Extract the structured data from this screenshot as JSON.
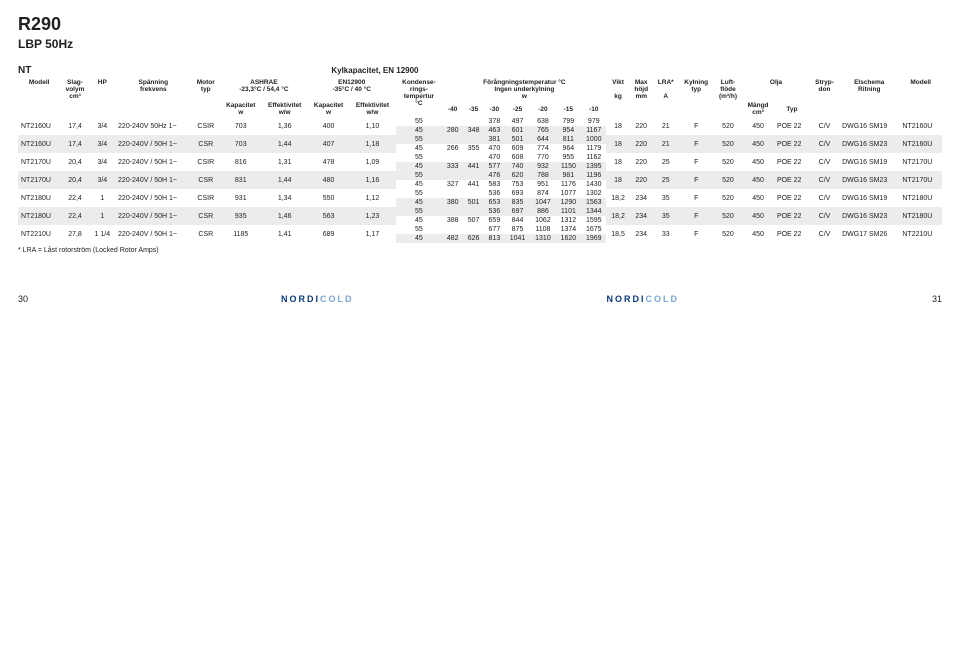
{
  "page": {
    "title_main": "R290",
    "title_sub": "LBP 50Hz",
    "series_label": "NT",
    "kyl_label": "Kylkapacitet, EN 12900",
    "footnote": "* LRA = Låst rotorström (Locked Rotor Amps)",
    "page_left": "30",
    "page_right": "31",
    "logo_text": "NORDICOLD"
  },
  "headers": {
    "modell": "Modell",
    "slag": "Slag-\nvolym\ncm³",
    "hp": "HP",
    "span": "Spänning\nfrekvens",
    "motor": "Motor\ntyp",
    "ashrae": "ASHRAE\n-23,3°C / 54,4 °C",
    "kap": "Kapacitet\nw",
    "eff": "Effektivitet\nw/w",
    "en12900": "EN12900\n-35°C / 40 °C",
    "kondens": "Kondenserings-\ntempertur\n°C",
    "forang": "Förångningstemperatur °C\nIngen underkylning\nw",
    "evap_temps": [
      "-40",
      "-35",
      "-30",
      "-25",
      "-20",
      "-15",
      "-10"
    ],
    "vikt": "Vikt\nkg",
    "maxhojd": "Max\nhöjd\nmm",
    "lra": "LRA*\nA",
    "kylning": "Kylning\ntyp",
    "luft": "Luft-\nflöde\n(m³/h)",
    "olja": "Olja",
    "mangd": "Mängd\ncm³",
    "typ": "Typ",
    "stryp": "Stryp-\ndon",
    "elschema": "Elschema\nRitning",
    "modell_r": "Modell"
  },
  "rows": [
    {
      "model": "NT2160U",
      "slag": "17,4",
      "hp": "3/4",
      "span": "220-240V 50Hz 1~",
      "motor": "CSIR",
      "ash_k": "703",
      "ash_e": "1,36",
      "en_k": "400",
      "en_e": "1,10",
      "lines": [
        {
          "cond": "55",
          "v": [
            "",
            "",
            "",
            "378",
            "497",
            "638",
            "799",
            "979"
          ]
        },
        {
          "cond": "45",
          "v": [
            "",
            "280",
            "348",
            "463",
            "601",
            "765",
            "954",
            "1167"
          ]
        }
      ],
      "vikt": "18",
      "hojd": "220",
      "lra": "21",
      "kyl": "F",
      "luft": "520",
      "mangd": "450",
      "typ": "POE 22",
      "stryp": "C/V",
      "schema": "DWG16  SM19",
      "model_r": "NT2160U"
    },
    {
      "model": "NT2160U",
      "slag": "17,4",
      "hp": "3/4",
      "span": "220-240V / 50H 1~",
      "motor": "CSR",
      "ash_k": "703",
      "ash_e": "1,44",
      "en_k": "407",
      "en_e": "1,18",
      "lines": [
        {
          "cond": "55",
          "v": [
            "",
            "",
            "",
            "381",
            "501",
            "644",
            "811",
            "1000"
          ]
        },
        {
          "cond": "45",
          "v": [
            "",
            "266",
            "355",
            "470",
            "609",
            "774",
            "964",
            "1179"
          ]
        }
      ],
      "vikt": "18",
      "hojd": "220",
      "lra": "21",
      "kyl": "F",
      "luft": "520",
      "mangd": "450",
      "typ": "POE 22",
      "stryp": "C/V",
      "schema": "DWG16  SM23",
      "model_r": "NT2160U"
    },
    {
      "model": "NT2170U",
      "slag": "20,4",
      "hp": "3/4",
      "span": "220-240V / 50H 1~",
      "motor": "CSIR",
      "ash_k": "816",
      "ash_e": "1,31",
      "en_k": "478",
      "en_e": "1,09",
      "lines": [
        {
          "cond": "55",
          "v": [
            "",
            "",
            "",
            "470",
            "608",
            "770",
            "955",
            "1162"
          ]
        },
        {
          "cond": "45",
          "v": [
            "",
            "333",
            "441",
            "577",
            "740",
            "932",
            "1150",
            "1395"
          ]
        }
      ],
      "vikt": "18",
      "hojd": "220",
      "lra": "25",
      "kyl": "F",
      "luft": "520",
      "mangd": "450",
      "typ": "POE 22",
      "stryp": "C/V",
      "schema": "DWG16  SM19",
      "model_r": "NT2170U"
    },
    {
      "model": "NT2170U",
      "slag": "20,4",
      "hp": "3/4",
      "span": "220-240V / 50H 1~",
      "motor": "CSR",
      "ash_k": "831",
      "ash_e": "1,44",
      "en_k": "480",
      "en_e": "1,16",
      "lines": [
        {
          "cond": "55",
          "v": [
            "",
            "",
            "",
            "476",
            "620",
            "788",
            "981",
            "1196"
          ]
        },
        {
          "cond": "45",
          "v": [
            "",
            "327",
            "441",
            "583",
            "753",
            "951",
            "1176",
            "1430"
          ]
        }
      ],
      "vikt": "18",
      "hojd": "220",
      "lra": "25",
      "kyl": "F",
      "luft": "520",
      "mangd": "450",
      "typ": "POE 22",
      "stryp": "C/V",
      "schema": "DWG16  SM23",
      "model_r": "NT2170U"
    },
    {
      "model": "NT2180U",
      "slag": "22,4",
      "hp": "1",
      "span": "220-240V / 50H 1~",
      "motor": "CSIR",
      "ash_k": "931",
      "ash_e": "1,34",
      "en_k": "550",
      "en_e": "1,12",
      "lines": [
        {
          "cond": "55",
          "v": [
            "",
            "",
            "",
            "536",
            "693",
            "874",
            "1077",
            "1302"
          ]
        },
        {
          "cond": "45",
          "v": [
            "",
            "380",
            "501",
            "653",
            "835",
            "1047",
            "1290",
            "1563"
          ]
        }
      ],
      "vikt": "18,2",
      "hojd": "234",
      "lra": "35",
      "kyl": "F",
      "luft": "520",
      "mangd": "450",
      "typ": "POE 22",
      "stryp": "C/V",
      "schema": "DWG16  SM19",
      "model_r": "NT2180U"
    },
    {
      "model": "NT2180U",
      "slag": "22,4",
      "hp": "1",
      "span": "220-240V / 50H 1~",
      "motor": "CSR",
      "ash_k": "935",
      "ash_e": "1,46",
      "en_k": "563",
      "en_e": "1,23",
      "lines": [
        {
          "cond": "55",
          "v": [
            "",
            "",
            "",
            "536",
            "697",
            "886",
            "1101",
            "1344"
          ]
        },
        {
          "cond": "45",
          "v": [
            "",
            "388",
            "507",
            "659",
            "844",
            "1062",
            "1312",
            "1595"
          ]
        }
      ],
      "vikt": "18,2",
      "hojd": "234",
      "lra": "35",
      "kyl": "F",
      "luft": "520",
      "mangd": "450",
      "typ": "POE 22",
      "stryp": "C/V",
      "schema": "DWG16  SM23",
      "model_r": "NT2180U"
    },
    {
      "model": "NT2210U",
      "slag": "27,8",
      "hp": "1 1/4",
      "span": "220-240V / 50H 1~",
      "motor": "CSR",
      "ash_k": "1185",
      "ash_e": "1,41",
      "en_k": "689",
      "en_e": "1,17",
      "lines": [
        {
          "cond": "55",
          "v": [
            "",
            "",
            "",
            "677",
            "875",
            "1108",
            "1374",
            "1675"
          ]
        },
        {
          "cond": "45",
          "v": [
            "",
            "482",
            "626",
            "813",
            "1041",
            "1310",
            "1620",
            "1969"
          ]
        }
      ],
      "vikt": "18,5",
      "hojd": "234",
      "lra": "33",
      "kyl": "F",
      "luft": "520",
      "mangd": "450",
      "typ": "POE 22",
      "stryp": "C/V",
      "schema": "DWG17  SM26",
      "model_r": "NT2210U"
    }
  ],
  "style": {
    "shade_bg": "#ececec"
  }
}
